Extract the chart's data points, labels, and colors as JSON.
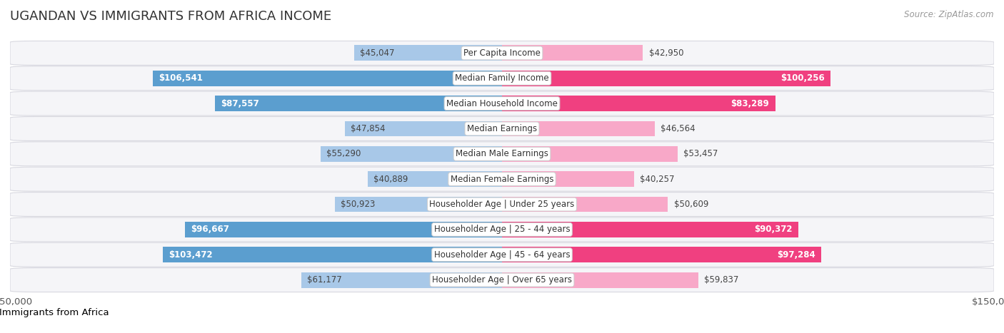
{
  "title": "UGANDAN VS IMMIGRANTS FROM AFRICA INCOME",
  "source": "Source: ZipAtlas.com",
  "categories": [
    "Per Capita Income",
    "Median Family Income",
    "Median Household Income",
    "Median Earnings",
    "Median Male Earnings",
    "Median Female Earnings",
    "Householder Age | Under 25 years",
    "Householder Age | 25 - 44 years",
    "Householder Age | 45 - 64 years",
    "Householder Age | Over 65 years"
  ],
  "ugandan_values": [
    45047,
    106541,
    87557,
    47854,
    55290,
    40889,
    50923,
    96667,
    103472,
    61177
  ],
  "africa_values": [
    42950,
    100256,
    83289,
    46564,
    53457,
    40257,
    50609,
    90372,
    97284,
    59837
  ],
  "ugandan_labels": [
    "$45,047",
    "$106,541",
    "$87,557",
    "$47,854",
    "$55,290",
    "$40,889",
    "$50,923",
    "$96,667",
    "$103,472",
    "$61,177"
  ],
  "africa_labels": [
    "$42,950",
    "$100,256",
    "$83,289",
    "$46,564",
    "$53,457",
    "$40,257",
    "$50,609",
    "$90,372",
    "$97,284",
    "$59,837"
  ],
  "ugandan_color_light": "#a8c8e8",
  "ugandan_color_dark": "#5b9ecf",
  "africa_color_light": "#f8a8c8",
  "africa_color_dark": "#f04080",
  "inside_label_threshold": 65000,
  "max_value": 150000,
  "bar_height": 0.62,
  "background_color": "#ffffff",
  "row_bg_light": "#f5f5f8",
  "row_border_color": "#d8d8e0",
  "label_fontsize": 8.5,
  "title_fontsize": 13,
  "legend_fontsize": 9.5
}
